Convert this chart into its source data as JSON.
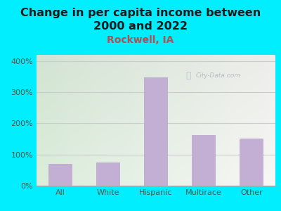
{
  "title": "Change in per capita income between\n2000 and 2022",
  "subtitle": "Rockwell, IA",
  "categories": [
    "All",
    "White",
    "Hispanic",
    "Multirace",
    "Other"
  ],
  "values": [
    70,
    75,
    347,
    162,
    152
  ],
  "bar_color": "#c4afd4",
  "title_fontsize": 11.5,
  "subtitle_fontsize": 10,
  "subtitle_color": "#b05050",
  "title_color": "#1a1a1a",
  "background_outer": "#00eeff",
  "yticks": [
    0,
    100,
    200,
    300,
    400
  ],
  "ylim": [
    0,
    420
  ],
  "watermark": "City-Data.com",
  "grid_color": "#cccccc",
  "tick_label_color": "#555544",
  "bar_width": 0.5
}
